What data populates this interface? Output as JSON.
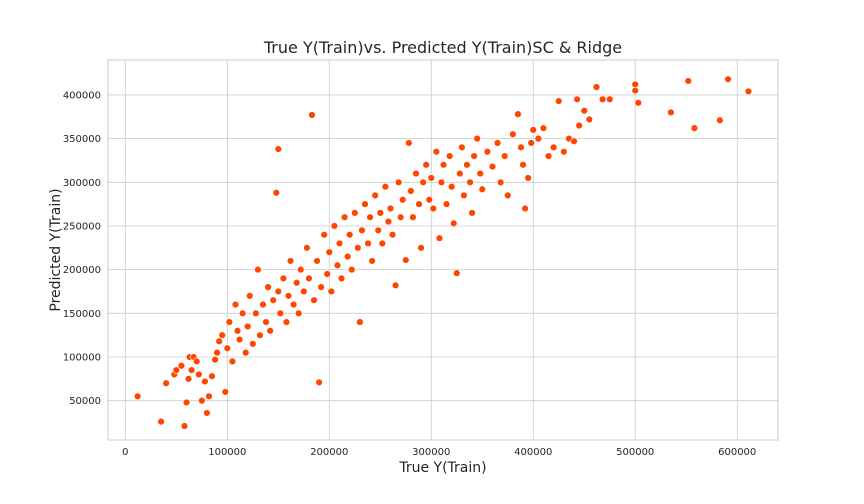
{
  "chart_data": {
    "type": "scatter",
    "title": "True Y(Train)vs. Predicted Y(Train)SC & Ridge",
    "xlabel": "True Y(Train)",
    "ylabel": "Predicted Y(Train)",
    "xlim": [
      -17000,
      640000
    ],
    "ylim": [
      5000,
      440000
    ],
    "xticks": [
      0,
      100000,
      200000,
      300000,
      400000,
      500000,
      600000
    ],
    "xtick_labels": [
      "0",
      "100000",
      "200000",
      "300000",
      "400000",
      "500000",
      "600000"
    ],
    "yticks": [
      50000,
      100000,
      150000,
      200000,
      250000,
      300000,
      350000,
      400000
    ],
    "ytick_labels": [
      "50000",
      "100000",
      "150000",
      "200000",
      "250000",
      "300000",
      "350000",
      "400000"
    ],
    "grid": true,
    "series": [
      {
        "color": "#ff4500",
        "points": [
          [
            12000,
            55000
          ],
          [
            35000,
            26000
          ],
          [
            40000,
            70000
          ],
          [
            48000,
            80000
          ],
          [
            50000,
            85000
          ],
          [
            55000,
            90000
          ],
          [
            58000,
            21000
          ],
          [
            60000,
            48000
          ],
          [
            62000,
            75000
          ],
          [
            63000,
            100000
          ],
          [
            65000,
            85000
          ],
          [
            67000,
            100000
          ],
          [
            70000,
            95000
          ],
          [
            72000,
            80000
          ],
          [
            75000,
            50000
          ],
          [
            78000,
            72000
          ],
          [
            80000,
            36000
          ],
          [
            82000,
            55000
          ],
          [
            85000,
            78000
          ],
          [
            88000,
            97000
          ],
          [
            90000,
            105000
          ],
          [
            92000,
            118000
          ],
          [
            95000,
            125000
          ],
          [
            98000,
            60000
          ],
          [
            100000,
            110000
          ],
          [
            102000,
            140000
          ],
          [
            105000,
            95000
          ],
          [
            108000,
            160000
          ],
          [
            110000,
            130000
          ],
          [
            112000,
            120000
          ],
          [
            115000,
            150000
          ],
          [
            118000,
            105000
          ],
          [
            120000,
            135000
          ],
          [
            122000,
            170000
          ],
          [
            125000,
            115000
          ],
          [
            128000,
            150000
          ],
          [
            130000,
            200000
          ],
          [
            132000,
            125000
          ],
          [
            135000,
            160000
          ],
          [
            138000,
            140000
          ],
          [
            140000,
            180000
          ],
          [
            142000,
            130000
          ],
          [
            145000,
            165000
          ],
          [
            148000,
            288000
          ],
          [
            150000,
            338000
          ],
          [
            150000,
            175000
          ],
          [
            152000,
            150000
          ],
          [
            155000,
            190000
          ],
          [
            158000,
            140000
          ],
          [
            160000,
            170000
          ],
          [
            162000,
            210000
          ],
          [
            165000,
            160000
          ],
          [
            168000,
            185000
          ],
          [
            170000,
            150000
          ],
          [
            172000,
            200000
          ],
          [
            175000,
            175000
          ],
          [
            178000,
            225000
          ],
          [
            180000,
            190000
          ],
          [
            183000,
            377000
          ],
          [
            185000,
            165000
          ],
          [
            188000,
            210000
          ],
          [
            190000,
            71000
          ],
          [
            192000,
            180000
          ],
          [
            195000,
            240000
          ],
          [
            198000,
            195000
          ],
          [
            200000,
            220000
          ],
          [
            202000,
            175000
          ],
          [
            205000,
            250000
          ],
          [
            208000,
            205000
          ],
          [
            210000,
            230000
          ],
          [
            212000,
            190000
          ],
          [
            215000,
            260000
          ],
          [
            218000,
            215000
          ],
          [
            220000,
            240000
          ],
          [
            222000,
            200000
          ],
          [
            225000,
            265000
          ],
          [
            228000,
            225000
          ],
          [
            230000,
            140000
          ],
          [
            232000,
            245000
          ],
          [
            235000,
            275000
          ],
          [
            238000,
            230000
          ],
          [
            240000,
            260000
          ],
          [
            242000,
            210000
          ],
          [
            245000,
            285000
          ],
          [
            248000,
            245000
          ],
          [
            250000,
            265000
          ],
          [
            252000,
            230000
          ],
          [
            255000,
            295000
          ],
          [
            258000,
            255000
          ],
          [
            260000,
            270000
          ],
          [
            262000,
            240000
          ],
          [
            265000,
            182000
          ],
          [
            268000,
            300000
          ],
          [
            270000,
            260000
          ],
          [
            272000,
            280000
          ],
          [
            275000,
            211000
          ],
          [
            278000,
            345000
          ],
          [
            280000,
            290000
          ],
          [
            282000,
            260000
          ],
          [
            285000,
            310000
          ],
          [
            288000,
            275000
          ],
          [
            290000,
            225000
          ],
          [
            292000,
            300000
          ],
          [
            295000,
            320000
          ],
          [
            298000,
            280000
          ],
          [
            300000,
            305000
          ],
          [
            302000,
            270000
          ],
          [
            305000,
            335000
          ],
          [
            308000,
            236000
          ],
          [
            310000,
            300000
          ],
          [
            312000,
            320000
          ],
          [
            315000,
            275000
          ],
          [
            318000,
            330000
          ],
          [
            320000,
            295000
          ],
          [
            322000,
            253000
          ],
          [
            325000,
            196000
          ],
          [
            328000,
            310000
          ],
          [
            330000,
            340000
          ],
          [
            332000,
            285000
          ],
          [
            335000,
            320000
          ],
          [
            338000,
            300000
          ],
          [
            340000,
            265000
          ],
          [
            342000,
            330000
          ],
          [
            345000,
            350000
          ],
          [
            348000,
            310000
          ],
          [
            350000,
            292000
          ],
          [
            355000,
            335000
          ],
          [
            360000,
            318000
          ],
          [
            365000,
            345000
          ],
          [
            368000,
            300000
          ],
          [
            372000,
            330000
          ],
          [
            375000,
            285000
          ],
          [
            380000,
            355000
          ],
          [
            385000,
            378000
          ],
          [
            388000,
            340000
          ],
          [
            390000,
            320000
          ],
          [
            392000,
            270000
          ],
          [
            395000,
            305000
          ],
          [
            398000,
            345000
          ],
          [
            400000,
            360000
          ],
          [
            405000,
            350000
          ],
          [
            410000,
            362000
          ],
          [
            415000,
            330000
          ],
          [
            420000,
            340000
          ],
          [
            425000,
            393000
          ],
          [
            430000,
            335000
          ],
          [
            435000,
            350000
          ],
          [
            440000,
            347000
          ],
          [
            443000,
            395000
          ],
          [
            445000,
            365000
          ],
          [
            450000,
            382000
          ],
          [
            455000,
            372000
          ],
          [
            462000,
            409000
          ],
          [
            468000,
            395000
          ],
          [
            475000,
            395000
          ],
          [
            500000,
            412000
          ],
          [
            500000,
            405000
          ],
          [
            503000,
            391000
          ],
          [
            535000,
            380000
          ],
          [
            552000,
            416000
          ],
          [
            558000,
            362000
          ],
          [
            583000,
            371000
          ],
          [
            591000,
            418000
          ],
          [
            611000,
            404000
          ]
        ]
      }
    ]
  }
}
